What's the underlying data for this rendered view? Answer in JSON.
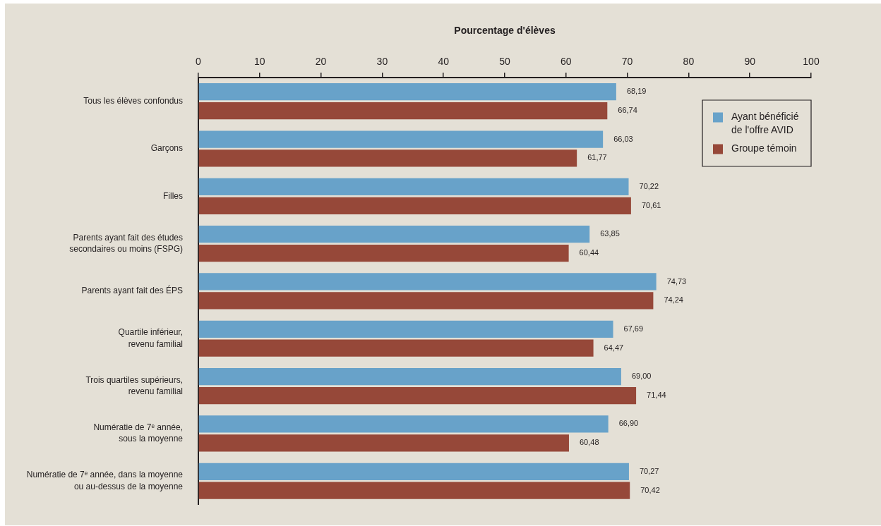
{
  "chart_data": {
    "type": "bar",
    "orientation": "horizontal",
    "xlabel": "Pourcentage d'élèves",
    "categories": [
      "Tous les élèves confondus",
      "Garçons",
      "Filles",
      "Parents ayant fait des études\nsecondaires ou moins (FSPG)",
      "Parents ayant fait des ÉPS",
      "Quartile inférieur,\nrevenu familial",
      "Trois quartiles supérieurs,\nrevenu familial",
      "Numératie de 7ᵉ année,\nsous la moyenne",
      "Numératie de 7ᵉ année, dans la moyenne\nou au-dessus de la moyenne"
    ],
    "series": [
      {
        "name": "Ayant bénéficié de l'offre AVID",
        "color": "#68a2c9",
        "values": [
          68.19,
          66.03,
          70.22,
          63.85,
          74.73,
          67.69,
          69.0,
          66.9,
          70.27
        ],
        "value_labels": [
          "68,19",
          "66,03",
          "70,22",
          "63,85",
          "74,73",
          "67,69",
          "69,00",
          "66,90",
          "70,27"
        ]
      },
      {
        "name": "Groupe témoin",
        "color": "#964839",
        "values": [
          66.74,
          61.77,
          70.61,
          60.44,
          74.24,
          64.47,
          71.44,
          60.48,
          70.42
        ],
        "value_labels": [
          "66,74",
          "61,77",
          "70,61",
          "60,44",
          "74,24",
          "64,47",
          "71,44",
          "60,48",
          "70,42"
        ]
      }
    ],
    "xlim": [
      0,
      100
    ],
    "xticks": [
      0,
      10,
      20,
      30,
      40,
      50,
      60,
      70,
      80,
      90,
      100
    ],
    "legend": "top right"
  }
}
